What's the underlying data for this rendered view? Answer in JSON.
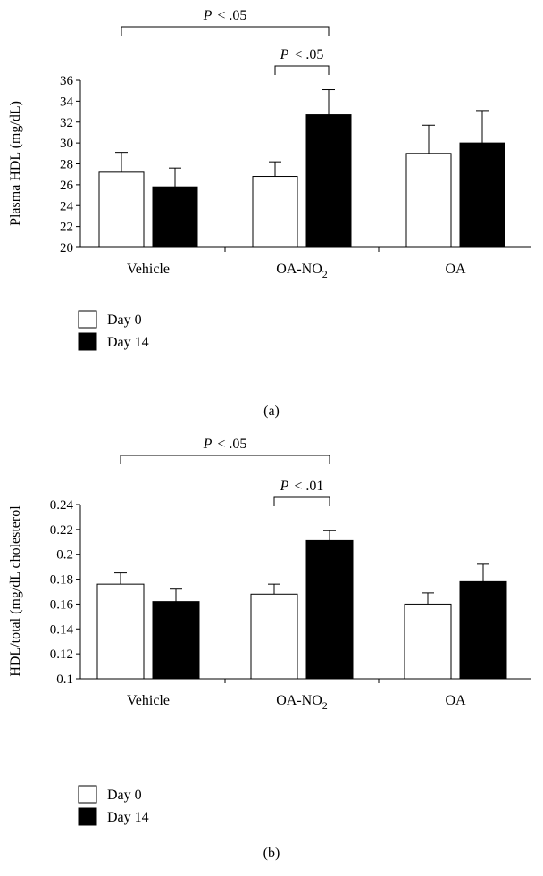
{
  "colors": {
    "day0": "#ffffff",
    "day14": "#000000",
    "axis": "#000000"
  },
  "legend": [
    {
      "label": "Day 0",
      "color": "#ffffff"
    },
    {
      "label": "Day 14",
      "color": "#000000"
    }
  ],
  "chart_data": [
    {
      "type": "bar",
      "caption": "(a)",
      "ylabel": "Plasma HDL (mg/dL)",
      "xlabel": "",
      "ylim": [
        20,
        36
      ],
      "yticks": [
        20,
        22,
        24,
        26,
        28,
        30,
        32,
        34,
        36
      ],
      "ytick_labels": [
        "20",
        "22",
        "24",
        "26",
        "28",
        "30",
        "32",
        "34",
        "36"
      ],
      "categories": [
        "Vehicle",
        "OA-NO",
        "OA"
      ],
      "category_subscripts": [
        "",
        "2",
        ""
      ],
      "series": [
        {
          "name": "Day 0",
          "values": [
            27.2,
            26.8,
            29.0
          ],
          "errors": [
            1.9,
            1.4,
            2.7
          ]
        },
        {
          "name": "Day 14",
          "values": [
            25.8,
            32.7,
            30.0
          ],
          "errors": [
            1.8,
            2.4,
            3.1
          ]
        }
      ],
      "significance": [
        {
          "label_p": "P",
          "label_rest": "< .05",
          "from": [
            0,
            0
          ],
          "to": [
            1,
            1
          ],
          "level": 2
        },
        {
          "label_p": "P",
          "label_rest": "< .05",
          "from": [
            1,
            0
          ],
          "to": [
            1,
            1
          ],
          "level": 1
        }
      ]
    },
    {
      "type": "bar",
      "caption": "(b)",
      "ylabel": "HDL/total (mg/dL cholesterol",
      "xlabel": "",
      "ylim": [
        0.1,
        0.24
      ],
      "yticks": [
        0.1,
        0.12,
        0.14,
        0.16,
        0.18,
        0.2,
        0.22,
        0.24
      ],
      "ytick_labels": [
        "0.1",
        "0.12",
        "0.14",
        "0.16",
        "0.18",
        "0.2",
        "0.22",
        "0.24"
      ],
      "categories": [
        "Vehicle",
        "OA-NO",
        "OA"
      ],
      "category_subscripts": [
        "",
        "2",
        ""
      ],
      "series": [
        {
          "name": "Day 0",
          "values": [
            0.176,
            0.168,
            0.16
          ],
          "errors": [
            0.009,
            0.008,
            0.009
          ]
        },
        {
          "name": "Day 14",
          "values": [
            0.162,
            0.211,
            0.178
          ],
          "errors": [
            0.01,
            0.008,
            0.014
          ]
        }
      ],
      "significance": [
        {
          "label_p": "P",
          "label_rest": "< .05",
          "from": [
            0,
            0
          ],
          "to": [
            1,
            1
          ],
          "level": 2
        },
        {
          "label_p": "P",
          "label_rest": "< .01",
          "from": [
            1,
            0
          ],
          "to": [
            1,
            1
          ],
          "level": 1
        }
      ]
    }
  ]
}
